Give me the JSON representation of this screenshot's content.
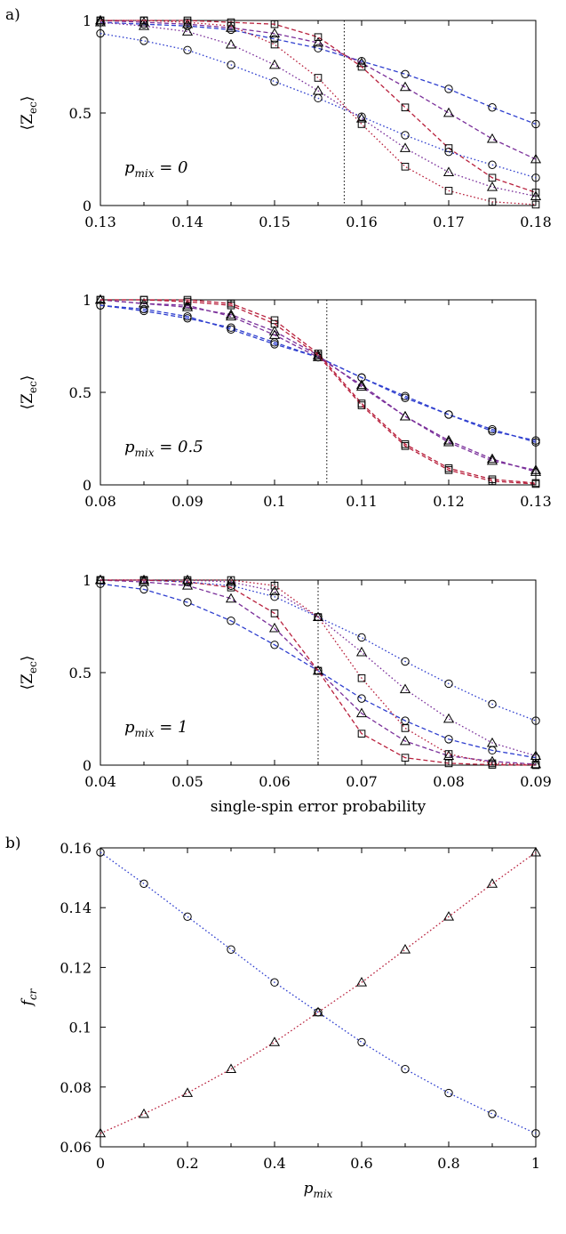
{
  "panel_labels": {
    "a": "a)",
    "b": "b)"
  },
  "colors": {
    "blue": "#2f3fcf",
    "purple": "#7a2f9a",
    "crimson": "#b8203c",
    "black": "#000000"
  },
  "chart_data": [
    {
      "id": "p1",
      "type": "line",
      "panel": "a",
      "ylabel": "⟨Z_ec⟩",
      "annotation": "p_mix = 0",
      "xlim": [
        0.13,
        0.18
      ],
      "ylim": [
        0,
        1
      ],
      "xticks": [
        "0.13",
        "0.14",
        "0.15",
        "0.16",
        "0.17",
        "0.18"
      ],
      "yticks": [
        "0",
        "0.5",
        "1"
      ],
      "vline": 0.158,
      "x": [
        0.13,
        0.135,
        0.14,
        0.145,
        0.15,
        0.155,
        0.16,
        0.165,
        0.17,
        0.175,
        0.18
      ],
      "series": [
        {
          "marker": "circle",
          "dash": "dashed",
          "color": "#2f3fcf",
          "values": [
            0.99,
            0.98,
            0.97,
            0.95,
            0.9,
            0.85,
            0.78,
            0.71,
            0.63,
            0.53,
            0.44
          ]
        },
        {
          "marker": "triangle",
          "dash": "dashed",
          "color": "#7a2f9a",
          "values": [
            1.0,
            0.99,
            0.98,
            0.96,
            0.93,
            0.88,
            0.77,
            0.64,
            0.5,
            0.36,
            0.25
          ]
        },
        {
          "marker": "square",
          "dash": "dashed",
          "color": "#b8203c",
          "values": [
            1.0,
            1.0,
            1.0,
            0.99,
            0.98,
            0.91,
            0.75,
            0.53,
            0.31,
            0.15,
            0.07
          ]
        },
        {
          "marker": "circle",
          "dash": "dotted",
          "color": "#2f3fcf",
          "values": [
            0.93,
            0.89,
            0.84,
            0.76,
            0.67,
            0.58,
            0.48,
            0.38,
            0.29,
            0.22,
            0.15
          ]
        },
        {
          "marker": "triangle",
          "dash": "dotted",
          "color": "#7a2f9a",
          "values": [
            0.99,
            0.97,
            0.94,
            0.87,
            0.76,
            0.62,
            0.47,
            0.31,
            0.18,
            0.1,
            0.05
          ]
        },
        {
          "marker": "square",
          "dash": "dotted",
          "color": "#b8203c",
          "values": [
            1.0,
            1.0,
            0.99,
            0.97,
            0.87,
            0.69,
            0.44,
            0.21,
            0.08,
            0.02,
            0.005
          ]
        }
      ]
    },
    {
      "id": "p2",
      "type": "line",
      "panel": "a",
      "ylabel": "⟨Z_ec⟩",
      "annotation": "p_mix = 0.5",
      "xlim": [
        0.08,
        0.13
      ],
      "ylim": [
        0,
        1
      ],
      "xticks": [
        "0.08",
        "0.09",
        "0.1",
        "0.11",
        "0.12",
        "0.13"
      ],
      "yticks": [
        "0",
        "0.5",
        "1"
      ],
      "vline": 0.106,
      "x": [
        0.08,
        0.085,
        0.09,
        0.095,
        0.1,
        0.105,
        0.11,
        0.115,
        0.12,
        0.125,
        0.13
      ],
      "series": [
        {
          "marker": "circle",
          "dash": "dashed",
          "color": "#2f3fcf",
          "values": [
            0.97,
            0.94,
            0.9,
            0.85,
            0.77,
            0.69,
            0.58,
            0.48,
            0.38,
            0.3,
            0.23
          ]
        },
        {
          "marker": "circle",
          "dash": "dashed",
          "color": "#2f3fcf",
          "values": [
            0.97,
            0.95,
            0.91,
            0.84,
            0.76,
            0.69,
            0.58,
            0.47,
            0.38,
            0.29,
            0.24
          ]
        },
        {
          "marker": "triangle",
          "dash": "dashed",
          "color": "#7a2f9a",
          "values": [
            1.0,
            0.98,
            0.96,
            0.92,
            0.83,
            0.7,
            0.53,
            0.37,
            0.24,
            0.14,
            0.07
          ]
        },
        {
          "marker": "triangle",
          "dash": "dashed",
          "color": "#7a2f9a",
          "values": [
            1.0,
            0.98,
            0.97,
            0.91,
            0.81,
            0.69,
            0.54,
            0.37,
            0.23,
            0.13,
            0.08
          ]
        },
        {
          "marker": "square",
          "dash": "dashed",
          "color": "#b8203c",
          "values": [
            1.0,
            1.0,
            1.0,
            0.98,
            0.89,
            0.71,
            0.44,
            0.22,
            0.09,
            0.03,
            0.01
          ]
        },
        {
          "marker": "square",
          "dash": "dashed",
          "color": "#b8203c",
          "values": [
            1.0,
            1.0,
            0.99,
            0.97,
            0.87,
            0.7,
            0.43,
            0.21,
            0.08,
            0.02,
            0.005
          ]
        }
      ]
    },
    {
      "id": "p3",
      "type": "line",
      "panel": "a",
      "ylabel": "⟨Z_ec⟩",
      "xlabel": "single-spin error probability",
      "annotation": "p_mix = 1",
      "xlim": [
        0.04,
        0.09
      ],
      "ylim": [
        0,
        1
      ],
      "xticks": [
        "0.04",
        "0.05",
        "0.06",
        "0.07",
        "0.08",
        "0.09"
      ],
      "yticks": [
        "0",
        "0.5",
        "1"
      ],
      "vline": 0.065,
      "x": [
        0.04,
        0.045,
        0.05,
        0.055,
        0.06,
        0.065,
        0.07,
        0.075,
        0.08,
        0.085,
        0.09
      ],
      "series": [
        {
          "marker": "circle",
          "dash": "dashed",
          "color": "#2f3fcf",
          "values": [
            0.98,
            0.95,
            0.88,
            0.78,
            0.65,
            0.51,
            0.36,
            0.24,
            0.14,
            0.08,
            0.04
          ]
        },
        {
          "marker": "triangle",
          "dash": "dashed",
          "color": "#7a2f9a",
          "values": [
            1.0,
            0.99,
            0.97,
            0.9,
            0.74,
            0.51,
            0.28,
            0.13,
            0.05,
            0.02,
            0.005
          ]
        },
        {
          "marker": "square",
          "dash": "dashed",
          "color": "#b8203c",
          "values": [
            1.0,
            1.0,
            0.99,
            0.96,
            0.82,
            0.51,
            0.17,
            0.04,
            0.01,
            0.002,
            0.0
          ]
        },
        {
          "marker": "circle",
          "dash": "dotted",
          "color": "#2f3fcf",
          "values": [
            1.0,
            1.0,
            0.99,
            0.97,
            0.91,
            0.8,
            0.69,
            0.56,
            0.44,
            0.33,
            0.24
          ]
        },
        {
          "marker": "triangle",
          "dash": "dotted",
          "color": "#7a2f9a",
          "values": [
            1.0,
            1.0,
            1.0,
            0.99,
            0.94,
            0.8,
            0.61,
            0.41,
            0.25,
            0.12,
            0.05
          ]
        },
        {
          "marker": "square",
          "dash": "dotted",
          "color": "#b8203c",
          "values": [
            1.0,
            1.0,
            1.0,
            1.0,
            0.97,
            0.8,
            0.47,
            0.2,
            0.06,
            0.01,
            0.002
          ]
        }
      ]
    },
    {
      "id": "p4",
      "type": "line",
      "panel": "b",
      "ylabel": "f_cr",
      "xlabel": "p_mix",
      "xlim": [
        0,
        1
      ],
      "ylim": [
        0.06,
        0.16
      ],
      "xticks": [
        "0",
        "0.2",
        "0.4",
        "0.6",
        "0.8",
        "1"
      ],
      "yticks": [
        "0.06",
        "0.08",
        "0.1",
        "0.12",
        "0.14",
        "0.16"
      ],
      "x": [
        0,
        0.1,
        0.2,
        0.3,
        0.4,
        0.5,
        0.6,
        0.7,
        0.8,
        0.9,
        1.0
      ],
      "series": [
        {
          "marker": "circle",
          "dash": "dotted",
          "color": "#2f3fcf",
          "values": [
            0.1585,
            0.148,
            0.137,
            0.126,
            0.115,
            0.105,
            0.095,
            0.086,
            0.078,
            0.071,
            0.0645
          ]
        },
        {
          "marker": "triangle",
          "dash": "dotted",
          "color": "#b8203c",
          "values": [
            0.0645,
            0.071,
            0.078,
            0.086,
            0.095,
            0.105,
            0.115,
            0.126,
            0.137,
            0.148,
            0.1585
          ]
        }
      ]
    }
  ]
}
